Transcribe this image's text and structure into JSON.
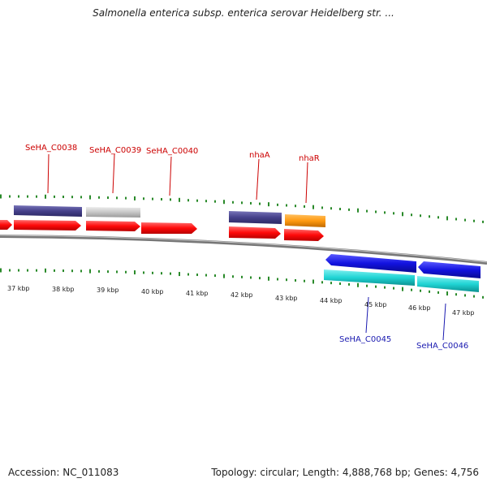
{
  "title": "Salmonella enterica subsp. enterica serovar Heidelberg str. ...",
  "footer": {
    "accession": "Accession: NC_011083",
    "summary": "Topology: circular; Length: 4,888,768 bp; Genes: 4,756"
  },
  "colors": {
    "forward_gene": "#ff1010",
    "forward_cds_purple": "#4a4690",
    "forward_cds_grey": "#c8c8c8",
    "forward_cds_orange": "#ff9b10",
    "reverse_gene_blue": "#1515e0",
    "reverse_cds_cyan": "#22d6d6",
    "tick_green": "#2a8a2a",
    "backbone": "#8c8c8c",
    "forward_label": "#cc0000",
    "reverse_label": "#1a1ab0"
  },
  "scale_ticks": [
    "37 kbp",
    "38 kbp",
    "39 kbp",
    "40 kbp",
    "41 kbp",
    "42 kbp",
    "43 kbp",
    "44 kbp",
    "45 kbp",
    "46 kbp",
    "47 kbp"
  ],
  "forward_labels": [
    "SeHA_C0038",
    "SeHA_C0039",
    "SeHA_C0040",
    "nhaA",
    "nhaR"
  ],
  "reverse_labels": [
    "SeHA_C0045",
    "SeHA_C0046"
  ]
}
